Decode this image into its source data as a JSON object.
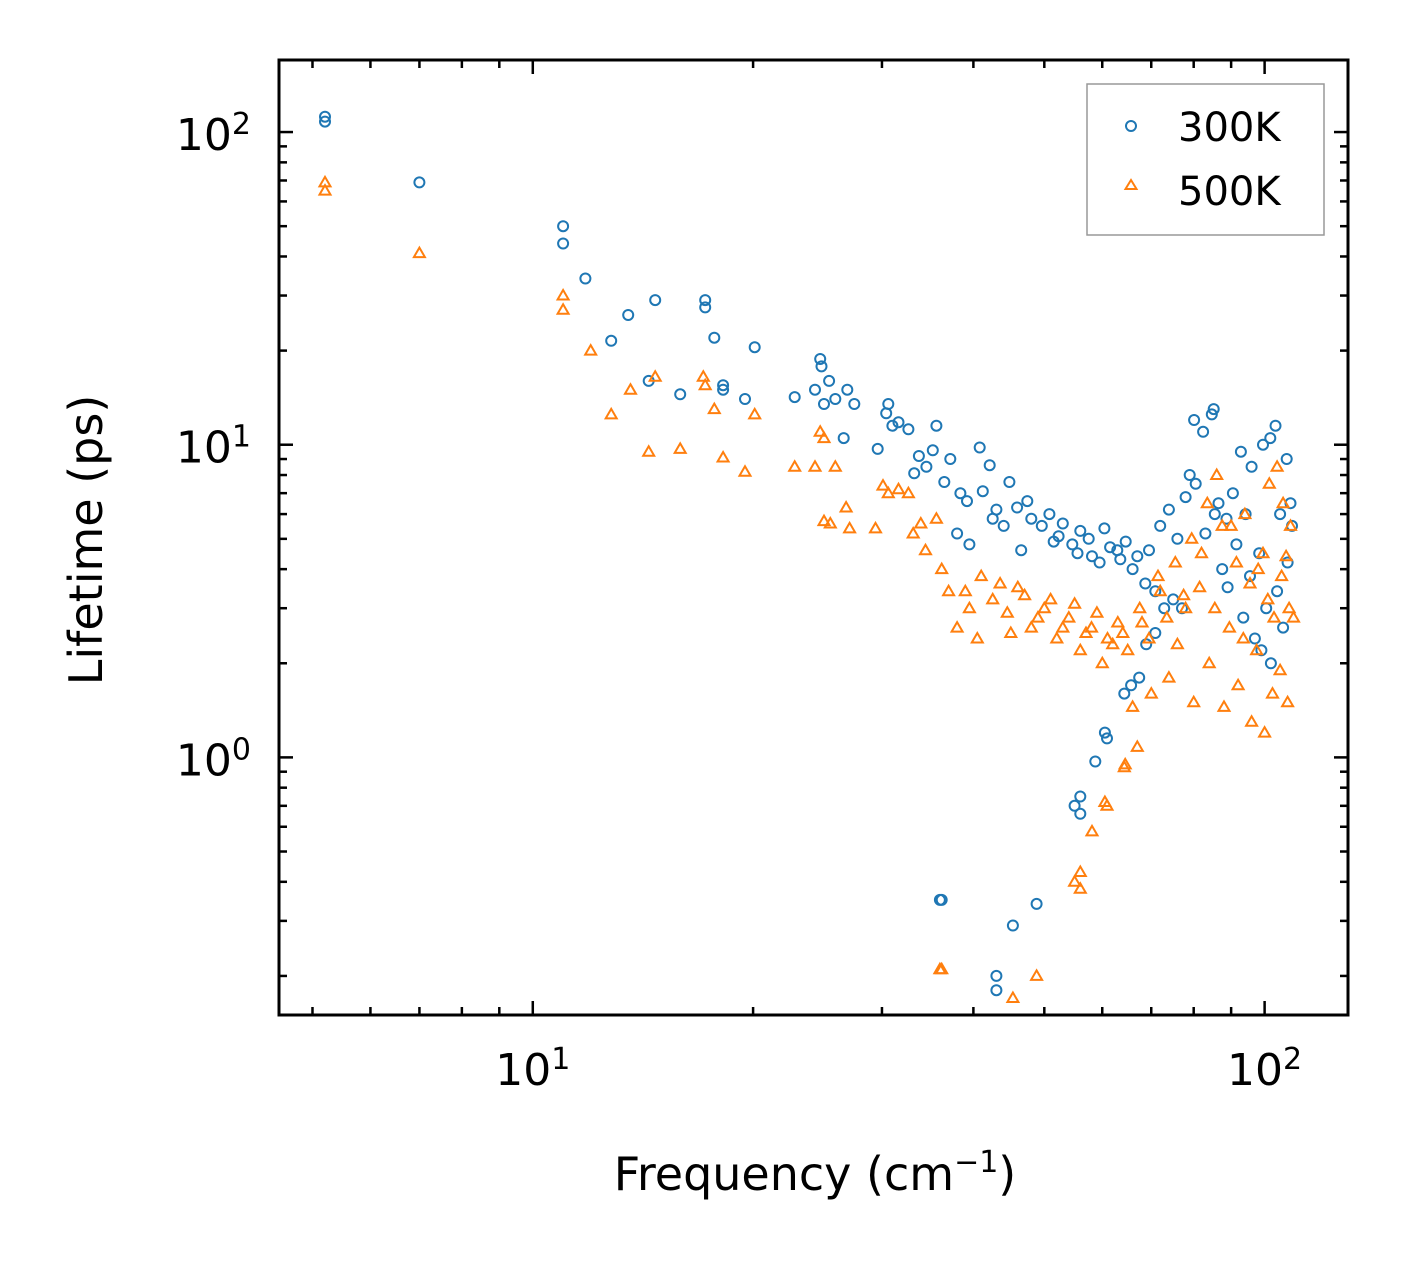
{
  "chart_data": {
    "type": "scatter",
    "xscale": "log",
    "yscale": "log",
    "xlim": [
      4.5,
      130
    ],
    "ylim": [
      0.15,
      170
    ],
    "xlabel": "Frequency (cm",
    "xlabel_sup": "−1",
    "xlabel_end": ")",
    "ylabel": "Lifetime (ps)",
    "x_ticks": [
      {
        "value": 10,
        "base": "10",
        "exp": "1"
      },
      {
        "value": 100,
        "base": "10",
        "exp": "2"
      }
    ],
    "y_ticks": [
      {
        "value": 1,
        "base": "10",
        "exp": "0"
      },
      {
        "value": 10,
        "base": "10",
        "exp": "1"
      },
      {
        "value": 100,
        "base": "10",
        "exp": "2"
      }
    ],
    "legend_position": "top-right",
    "series": [
      {
        "name": "300K",
        "marker": "circle",
        "color": "#1f77b4",
        "points": [
          [
            5.2,
            112
          ],
          [
            5.2,
            108
          ],
          [
            7.0,
            69
          ],
          [
            11.0,
            50
          ],
          [
            11.0,
            44
          ],
          [
            11.8,
            34
          ],
          [
            12.8,
            21.5
          ],
          [
            13.5,
            26
          ],
          [
            14.4,
            16
          ],
          [
            14.7,
            29
          ],
          [
            15.9,
            14.5
          ],
          [
            17.2,
            29
          ],
          [
            17.2,
            27.5
          ],
          [
            17.7,
            22
          ],
          [
            18.2,
            15.5
          ],
          [
            18.2,
            15
          ],
          [
            19.5,
            14
          ],
          [
            20.1,
            20.5
          ],
          [
            22.8,
            14.2
          ],
          [
            24.3,
            15
          ],
          [
            24.7,
            18.8
          ],
          [
            24.8,
            17.8
          ],
          [
            25.0,
            13.5
          ],
          [
            25.4,
            16
          ],
          [
            25.9,
            14
          ],
          [
            26.6,
            10.5
          ],
          [
            26.9,
            15
          ],
          [
            27.5,
            13.5
          ],
          [
            29.6,
            9.7
          ],
          [
            30.4,
            12.6
          ],
          [
            30.6,
            13.5
          ],
          [
            31.0,
            11.5
          ],
          [
            31.6,
            11.8
          ],
          [
            32.6,
            11.2
          ],
          [
            33.2,
            8.1
          ],
          [
            33.7,
            9.2
          ],
          [
            34.5,
            8.5
          ],
          [
            35.2,
            9.6
          ],
          [
            35.6,
            11.5
          ],
          [
            36.5,
            7.6
          ],
          [
            37.2,
            9.0
          ],
          [
            38.4,
            7.0
          ],
          [
            39.2,
            6.6
          ],
          [
            40.8,
            9.8
          ],
          [
            41.2,
            7.1
          ],
          [
            42.1,
            8.6
          ],
          [
            43.0,
            6.2
          ],
          [
            44.8,
            7.6
          ],
          [
            45.9,
            6.3
          ],
          [
            47.4,
            6.6
          ],
          [
            49.6,
            5.5
          ],
          [
            50.8,
            6.0
          ],
          [
            52.3,
            5.1
          ],
          [
            54.6,
            4.8
          ],
          [
            56.0,
            5.3
          ],
          [
            58.1,
            4.4
          ],
          [
            60.4,
            5.4
          ],
          [
            62.9,
            4.6
          ],
          [
            64.6,
            4.9
          ],
          [
            67.0,
            4.4
          ],
          [
            68.7,
            3.6
          ],
          [
            70.9,
            3.4
          ],
          [
            72.9,
            3.0
          ],
          [
            75.0,
            3.2
          ],
          [
            77.1,
            3.0
          ],
          [
            79.0,
            8.0
          ],
          [
            80.1,
            12.0
          ],
          [
            82.4,
            11.0
          ],
          [
            84.7,
            12.5
          ],
          [
            85.2,
            13.0
          ],
          [
            86.5,
            6.5
          ],
          [
            88.7,
            5.8
          ],
          [
            90.5,
            7.0
          ],
          [
            92.8,
            9.5
          ],
          [
            94.2,
            6.0
          ],
          [
            96.0,
            8.5
          ],
          [
            98.3,
            4.5
          ],
          [
            99.5,
            10.0
          ],
          [
            101.8,
            10.5
          ],
          [
            103.5,
            11.5
          ],
          [
            105.0,
            6.0
          ],
          [
            107.2,
            9.0
          ],
          [
            108.5,
            6.5
          ],
          [
            36.0,
            0.35
          ],
          [
            36.2,
            0.35
          ],
          [
            43.0,
            0.2
          ],
          [
            43.0,
            0.18
          ],
          [
            45.3,
            0.29
          ],
          [
            48.8,
            0.34
          ],
          [
            55.0,
            0.7
          ],
          [
            56.0,
            0.75
          ],
          [
            56.0,
            0.66
          ],
          [
            58.7,
            0.97
          ],
          [
            60.5,
            1.2
          ],
          [
            60.9,
            1.15
          ],
          [
            64.3,
            1.6
          ],
          [
            65.7,
            1.7
          ],
          [
            67.4,
            1.8
          ],
          [
            68.9,
            2.3
          ],
          [
            70.9,
            2.5
          ],
          [
            38.0,
            5.2
          ],
          [
            39.5,
            4.8
          ],
          [
            42.5,
            5.8
          ],
          [
            44.0,
            5.5
          ],
          [
            46.5,
            4.6
          ],
          [
            48.0,
            5.8
          ],
          [
            51.5,
            4.9
          ],
          [
            53.0,
            5.6
          ],
          [
            55.5,
            4.5
          ],
          [
            57.5,
            5.0
          ],
          [
            59.5,
            4.2
          ],
          [
            61.5,
            4.7
          ],
          [
            63.5,
            4.3
          ],
          [
            66.0,
            4.0
          ],
          [
            69.5,
            4.6
          ],
          [
            72.0,
            5.5
          ],
          [
            74.0,
            6.2
          ],
          [
            76.0,
            5.0
          ],
          [
            78.0,
            6.8
          ],
          [
            80.5,
            7.5
          ],
          [
            83.0,
            5.2
          ],
          [
            85.5,
            6.0
          ],
          [
            87.5,
            4.0
          ],
          [
            89.0,
            3.5
          ],
          [
            91.5,
            4.8
          ],
          [
            93.5,
            2.8
          ],
          [
            95.5,
            3.8
          ],
          [
            97.0,
            2.4
          ],
          [
            99.0,
            2.2
          ],
          [
            100.5,
            3.0
          ],
          [
            102.0,
            2.0
          ],
          [
            104.0,
            3.4
          ],
          [
            106.0,
            2.6
          ],
          [
            107.5,
            4.2
          ],
          [
            109.0,
            5.5
          ]
        ]
      },
      {
        "name": "500K",
        "marker": "triangle",
        "color": "#ff7f0e",
        "points": [
          [
            5.2,
            69
          ],
          [
            5.2,
            65
          ],
          [
            7.0,
            41
          ],
          [
            11.0,
            30
          ],
          [
            11.0,
            27
          ],
          [
            12.0,
            20
          ],
          [
            12.8,
            12.5
          ],
          [
            13.6,
            15
          ],
          [
            14.4,
            9.5
          ],
          [
            14.7,
            16.5
          ],
          [
            15.9,
            9.7
          ],
          [
            17.1,
            16.5
          ],
          [
            17.2,
            15.5
          ],
          [
            17.7,
            13
          ],
          [
            18.2,
            9.1
          ],
          [
            19.5,
            8.2
          ],
          [
            20.1,
            12.5
          ],
          [
            22.8,
            8.5
          ],
          [
            24.3,
            8.5
          ],
          [
            24.7,
            11
          ],
          [
            25.0,
            10.5
          ],
          [
            25.0,
            5.7
          ],
          [
            25.5,
            5.6
          ],
          [
            25.9,
            8.5
          ],
          [
            26.8,
            6.3
          ],
          [
            27.1,
            5.4
          ],
          [
            29.4,
            5.4
          ],
          [
            30.1,
            7.4
          ],
          [
            30.6,
            7.0
          ],
          [
            31.6,
            7.2
          ],
          [
            32.6,
            7.0
          ],
          [
            33.1,
            5.2
          ],
          [
            33.9,
            5.6
          ],
          [
            34.4,
            4.6
          ],
          [
            35.6,
            5.8
          ],
          [
            36.2,
            4.0
          ],
          [
            37.0,
            3.4
          ],
          [
            38.0,
            2.6
          ],
          [
            39.5,
            3.0
          ],
          [
            41.0,
            3.8
          ],
          [
            42.5,
            3.2
          ],
          [
            44.5,
            2.9
          ],
          [
            46.0,
            3.5
          ],
          [
            48.0,
            2.6
          ],
          [
            50.0,
            3.0
          ],
          [
            52.0,
            2.4
          ],
          [
            54.0,
            2.8
          ],
          [
            56.0,
            2.2
          ],
          [
            58.0,
            2.6
          ],
          [
            60.0,
            2.0
          ],
          [
            62.0,
            2.3
          ],
          [
            64.0,
            2.5
          ],
          [
            66.0,
            1.45
          ],
          [
            68.0,
            2.7
          ],
          [
            70.0,
            1.6
          ],
          [
            72.0,
            3.4
          ],
          [
            74.0,
            1.8
          ],
          [
            76.0,
            2.3
          ],
          [
            78.0,
            3.0
          ],
          [
            80.0,
            1.5
          ],
          [
            82.0,
            4.5
          ],
          [
            84.0,
            2.0
          ],
          [
            86.0,
            8.0
          ],
          [
            88.0,
            1.45
          ],
          [
            90.0,
            5.5
          ],
          [
            92.0,
            1.7
          ],
          [
            94.0,
            6.0
          ],
          [
            96.0,
            1.3
          ],
          [
            98.0,
            4.0
          ],
          [
            100.0,
            1.2
          ],
          [
            101.5,
            7.5
          ],
          [
            102.5,
            1.6
          ],
          [
            104.0,
            8.5
          ],
          [
            105.0,
            1.9
          ],
          [
            106.0,
            6.5
          ],
          [
            107.5,
            1.5
          ],
          [
            108.5,
            5.5
          ],
          [
            109.5,
            2.8
          ],
          [
            36.0,
            0.21
          ],
          [
            36.2,
            0.21
          ],
          [
            45.3,
            0.17
          ],
          [
            48.8,
            0.2
          ],
          [
            55.0,
            0.4
          ],
          [
            56.0,
            0.43
          ],
          [
            56.0,
            0.38
          ],
          [
            58.1,
            0.58
          ],
          [
            60.5,
            0.72
          ],
          [
            60.9,
            0.7
          ],
          [
            64.3,
            0.93
          ],
          [
            64.5,
            0.95
          ],
          [
            67.0,
            1.08
          ],
          [
            39.0,
            3.4
          ],
          [
            40.5,
            2.4
          ],
          [
            43.5,
            3.6
          ],
          [
            45.0,
            2.5
          ],
          [
            47.0,
            3.3
          ],
          [
            49.0,
            2.8
          ],
          [
            51.0,
            3.2
          ],
          [
            53.0,
            2.6
          ],
          [
            55.0,
            3.1
          ],
          [
            57.0,
            2.5
          ],
          [
            59.0,
            2.9
          ],
          [
            61.0,
            2.4
          ],
          [
            63.0,
            2.7
          ],
          [
            65.0,
            2.2
          ],
          [
            67.5,
            3.0
          ],
          [
            69.5,
            2.4
          ],
          [
            71.5,
            3.8
          ],
          [
            73.5,
            2.8
          ],
          [
            75.5,
            4.2
          ],
          [
            77.5,
            3.3
          ],
          [
            79.5,
            5.0
          ],
          [
            81.5,
            3.5
          ],
          [
            83.5,
            6.5
          ],
          [
            85.5,
            3.0
          ],
          [
            87.5,
            5.5
          ],
          [
            89.5,
            2.6
          ],
          [
            91.5,
            4.2
          ],
          [
            93.5,
            2.4
          ],
          [
            95.5,
            3.6
          ],
          [
            97.5,
            2.2
          ],
          [
            99.5,
            4.5
          ],
          [
            101.0,
            3.2
          ],
          [
            103.0,
            2.8
          ],
          [
            105.5,
            3.8
          ],
          [
            107.0,
            4.4
          ],
          [
            108.0,
            3.0
          ]
        ]
      }
    ]
  }
}
